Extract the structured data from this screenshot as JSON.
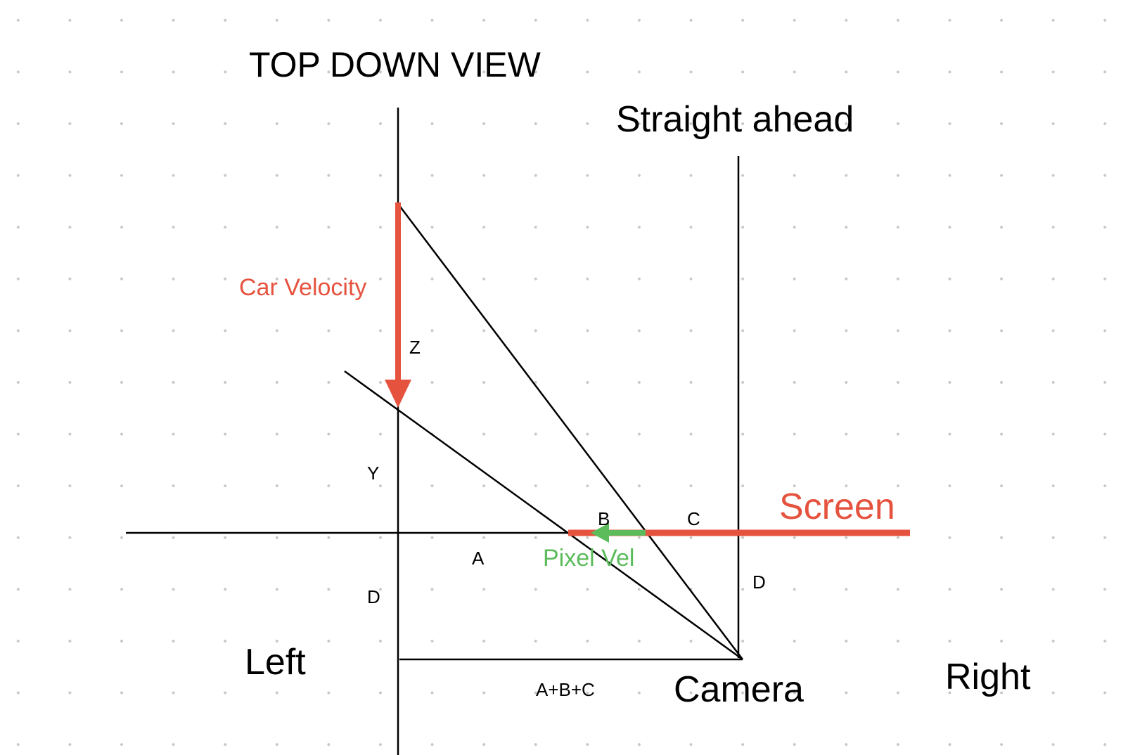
{
  "title": "TOP DOWN VIEW",
  "labels": {
    "straight_ahead": "Straight ahead",
    "left": "Left",
    "right": "Right",
    "camera": "Camera",
    "screen": "Screen",
    "car_velocity": "Car Velocity",
    "pixel_vel": "Pixel Vel",
    "z": "Z",
    "y": "Y",
    "a": "A",
    "b": "B",
    "c": "C",
    "d_left": "D",
    "d_right": "D",
    "a_b_c": "A+B+C"
  },
  "colors": {
    "ink": "#000000",
    "red": "#e5533f",
    "green": "#5cbc5c",
    "grid_dot": "#c8c8c8",
    "background": "#ffffff"
  }
}
